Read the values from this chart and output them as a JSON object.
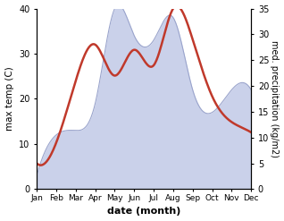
{
  "months": [
    "Jan",
    "Feb",
    "Mar",
    "Apr",
    "May",
    "Jun",
    "Jul",
    "Aug",
    "Sep",
    "Oct",
    "Nov",
    "Dec"
  ],
  "temperature": [
    3,
    12,
    13,
    19,
    40,
    34,
    33,
    38,
    22,
    17,
    22,
    22
  ],
  "precipitation": [
    5,
    9,
    21,
    28,
    22,
    27,
    24,
    35,
    29,
    18,
    13,
    11
  ],
  "temp_fill_color": "#c5cce8",
  "temp_line_color": "#9aa4cc",
  "precip_color": "#c0392b",
  "left_ylim": [
    0,
    40
  ],
  "right_ylim": [
    0,
    35
  ],
  "left_yticks": [
    0,
    10,
    20,
    30,
    40
  ],
  "right_yticks": [
    0,
    5,
    10,
    15,
    20,
    25,
    30,
    35
  ],
  "xlabel": "date (month)",
  "ylabel_left": "max temp (C)",
  "ylabel_right": "med. precipitation (kg/m2)",
  "bg_color": "#ffffff"
}
